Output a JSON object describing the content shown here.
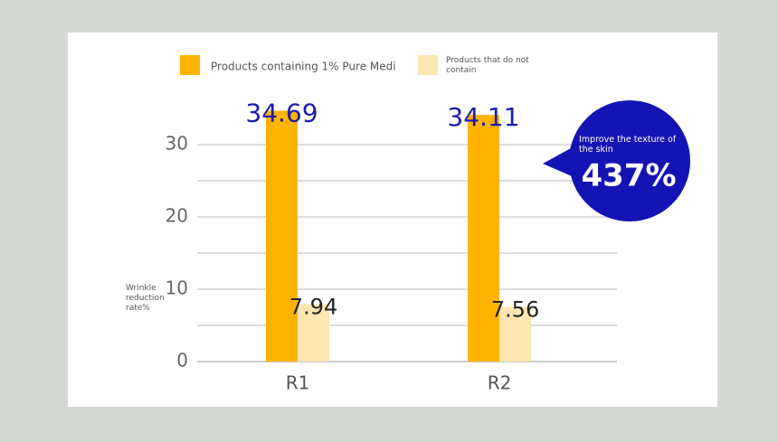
{
  "chart_data": {
    "type": "bar",
    "categories": [
      "R1",
      "R2"
    ],
    "series": [
      {
        "name": "Products containing 1% Pure Medi",
        "color": "#ffb300",
        "values": [
          34.69,
          34.11
        ],
        "label_color": "#1c1cae"
      },
      {
        "name": "Products that do not contain",
        "color": "#fde6b2",
        "values": [
          7.94,
          7.56
        ],
        "label_color": "#222222"
      }
    ],
    "y_label": "Wrinkle reduction rate%",
    "ylim": [
      0,
      35
    ],
    "yticks": [
      0,
      10,
      20,
      30
    ],
    "grid_lines": [
      0,
      5,
      10,
      15,
      20,
      25,
      30
    ],
    "callout": {
      "text": "Improve the texture of the skin",
      "label": "437%",
      "color": "#1414b4"
    }
  }
}
